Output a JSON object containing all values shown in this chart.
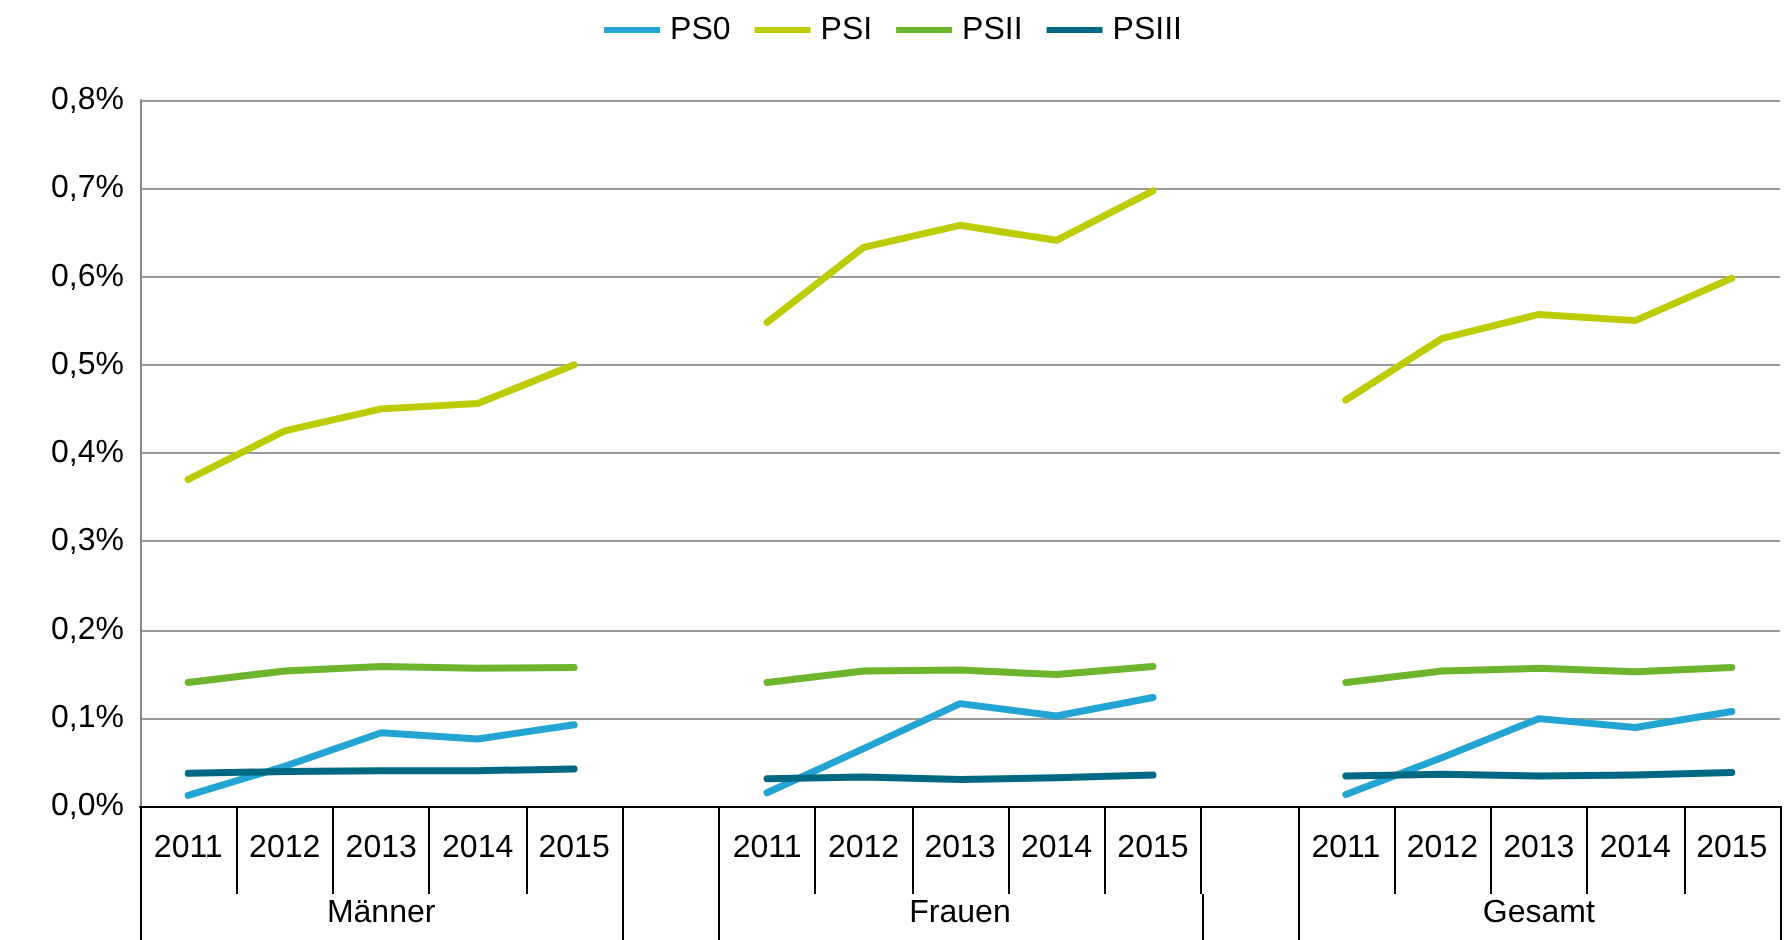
{
  "chart_data": {
    "type": "line",
    "categories": [
      "2011",
      "2012",
      "2013",
      "2014",
      "2015",
      null,
      "2011",
      "2012",
      "2013",
      "2014",
      "2015",
      null,
      "2011",
      "2012",
      "2013",
      "2014",
      "2015"
    ],
    "series": [
      {
        "name": "PS0",
        "color": "#23a5d4",
        "values": [
          0.012,
          0.045,
          0.083,
          0.076,
          0.092,
          null,
          0.015,
          0.065,
          0.116,
          0.102,
          0.123,
          null,
          0.013,
          0.055,
          0.099,
          0.089,
          0.107
        ]
      },
      {
        "name": "PSI",
        "color": "#bccc00",
        "values": [
          0.37,
          0.425,
          0.45,
          0.456,
          0.5,
          null,
          0.548,
          0.633,
          0.658,
          0.641,
          0.697,
          null,
          0.46,
          0.53,
          0.557,
          0.55,
          0.598
        ]
      },
      {
        "name": "PSII",
        "color": "#6cb52d",
        "values": [
          0.14,
          0.153,
          0.158,
          0.156,
          0.157,
          null,
          0.14,
          0.153,
          0.154,
          0.149,
          0.158,
          null,
          0.14,
          0.153,
          0.156,
          0.152,
          0.157
        ]
      },
      {
        "name": "PSIII",
        "color": "#006882",
        "values": [
          0.037,
          0.039,
          0.04,
          0.04,
          0.042,
          null,
          0.031,
          0.033,
          0.03,
          0.032,
          0.035,
          null,
          0.034,
          0.036,
          0.034,
          0.035,
          0.038
        ]
      }
    ],
    "annotations": [
      "Männer",
      "Frauen",
      "Gesamt"
    ],
    "ylim": [
      0,
      0.8
    ],
    "yticks": [
      {
        "value": 0,
        "label": "0,0%"
      },
      {
        "value": 0.1,
        "label": "0,1%"
      },
      {
        "value": 0.2,
        "label": "0,2%"
      },
      {
        "value": 0.3,
        "label": "0,3%"
      },
      {
        "value": 0.4,
        "label": "0,4%"
      },
      {
        "value": 0.5,
        "label": "0,5%"
      },
      {
        "value": 0.6,
        "label": "0,6%"
      },
      {
        "value": 0.7,
        "label": "0,7%"
      },
      {
        "value": 0.8,
        "label": "0,8%"
      }
    ],
    "grid": "y",
    "legend": "top",
    "marker": "none",
    "line_style": "solid"
  }
}
